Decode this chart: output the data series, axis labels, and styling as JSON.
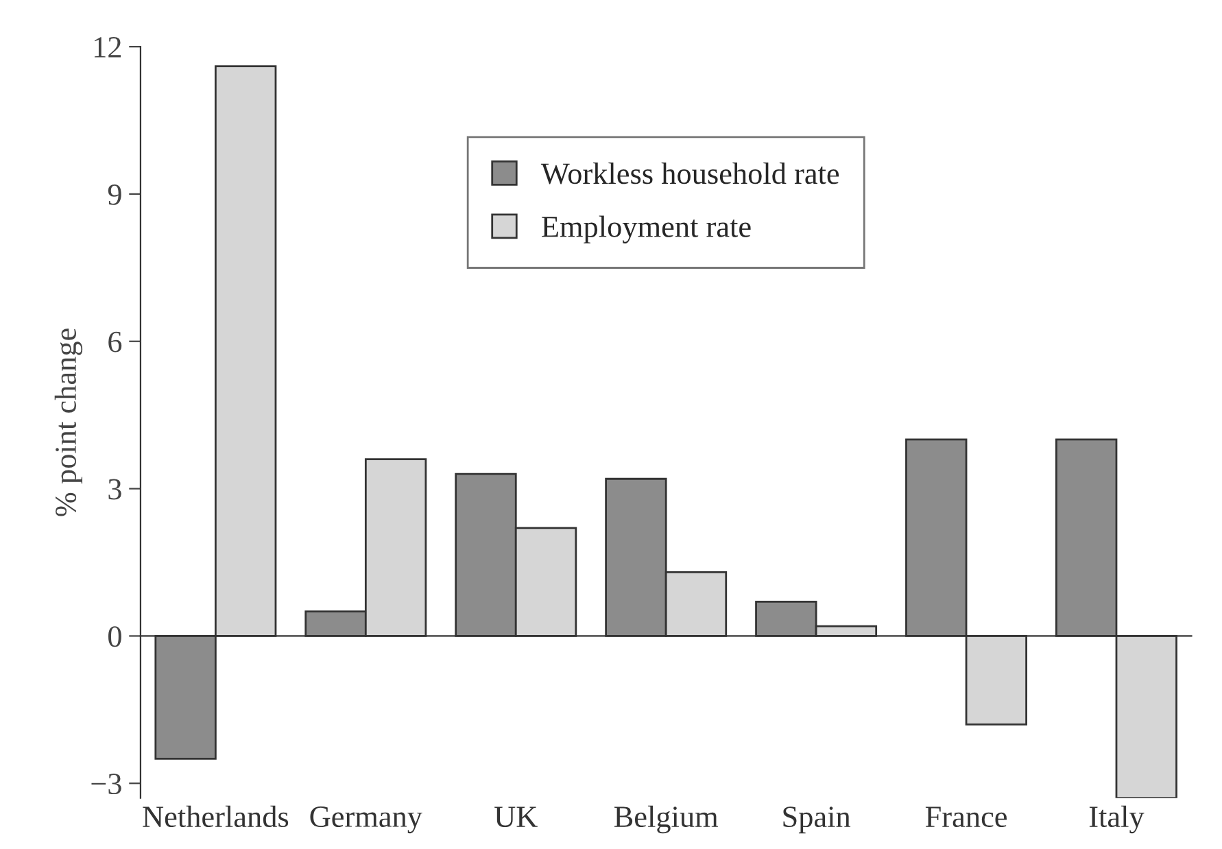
{
  "chart_data": {
    "type": "bar",
    "ylabel": "% point change",
    "categories": [
      "Netherlands",
      "Germany",
      "UK",
      "Belgium",
      "Spain",
      "France",
      "Italy"
    ],
    "series": [
      {
        "name": "Workless household rate",
        "color": "#8c8c8c",
        "values": [
          -2.5,
          0.5,
          3.3,
          3.2,
          0.7,
          4.0,
          4.0
        ]
      },
      {
        "name": "Employment rate",
        "color": "#d6d6d6",
        "values": [
          11.6,
          3.6,
          2.2,
          1.3,
          0.2,
          -1.8,
          -3.3
        ]
      }
    ],
    "ylim": [
      -3.3,
      12
    ],
    "yticks": [
      {
        "value": -3,
        "label": "−3"
      },
      0,
      3,
      6,
      9,
      12
    ],
    "legend": "top"
  }
}
